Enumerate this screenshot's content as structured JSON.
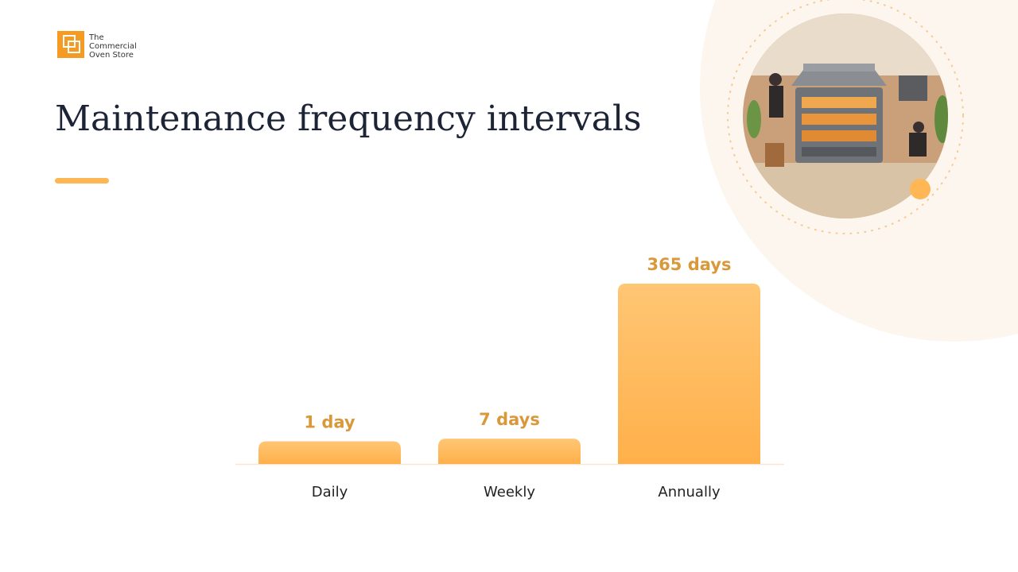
{
  "brand": {
    "lines": [
      "The",
      "Commercial",
      "Oven Store"
    ]
  },
  "chart_data": {
    "type": "bar",
    "title": "Maintenance frequency intervals",
    "categories": [
      "Daily",
      "Weekly",
      "Annually"
    ],
    "values": [
      1,
      7,
      365
    ],
    "value_labels": [
      "1 day",
      "7 days",
      "365 days"
    ],
    "color": "#ffb655"
  }
}
